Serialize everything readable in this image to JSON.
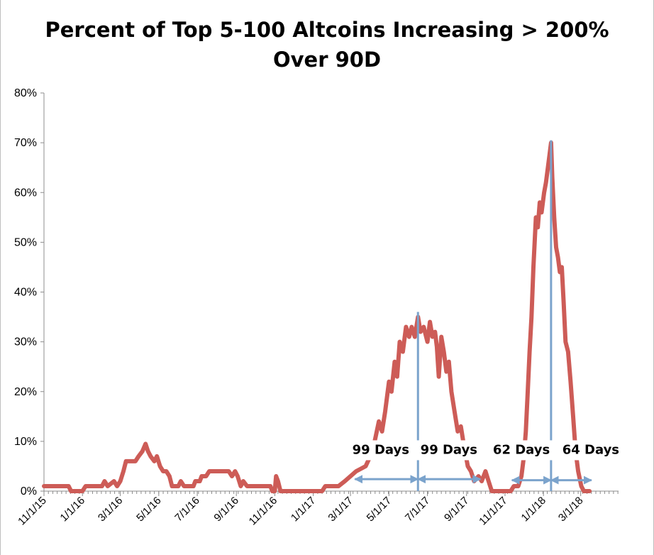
{
  "chart_data": {
    "type": "line",
    "title_lines": [
      "Percent of Top 5-100 Altcoins Increasing > 200%",
      "Over 90D"
    ],
    "xlabel": "",
    "ylabel": "",
    "ylim": [
      0,
      80
    ],
    "yticks": [
      0,
      10,
      20,
      30,
      40,
      50,
      60,
      70,
      80
    ],
    "ytick_labels": [
      "0%",
      "10%",
      "20%",
      "30%",
      "40%",
      "50%",
      "60%",
      "70%",
      "80%"
    ],
    "xlim": [
      "2015-11-01",
      "2018-04-30"
    ],
    "xtick_labels": [
      "11/1/15",
      "1/1/16",
      "3/1/16",
      "5/1/16",
      "7/1/16",
      "9/1/16",
      "11/1/16",
      "1/1/17",
      "3/1/17",
      "5/1/17",
      "7/1/17",
      "9/1/17",
      "11/1/17",
      "1/1/18",
      "3/1/18"
    ],
    "xtick_dates": [
      "2015-11-01",
      "2016-01-01",
      "2016-03-01",
      "2016-05-01",
      "2016-07-01",
      "2016-09-01",
      "2016-11-01",
      "2017-01-01",
      "2017-03-01",
      "2017-05-01",
      "2017-07-01",
      "2017-09-01",
      "2017-11-01",
      "2018-01-01",
      "2018-03-01"
    ],
    "grid": false,
    "legend": "none",
    "series": [
      {
        "color": "#cd5c57",
        "points": [
          [
            "2015-11-01",
            1
          ],
          [
            "2015-12-10",
            1
          ],
          [
            "2015-12-14",
            0
          ],
          [
            "2016-01-01",
            0
          ],
          [
            "2016-01-06",
            1
          ],
          [
            "2016-02-01",
            1
          ],
          [
            "2016-02-05",
            2
          ],
          [
            "2016-02-10",
            1
          ],
          [
            "2016-02-20",
            2
          ],
          [
            "2016-02-25",
            1
          ],
          [
            "2016-03-01",
            2
          ],
          [
            "2016-03-06",
            4
          ],
          [
            "2016-03-10",
            6
          ],
          [
            "2016-03-25",
            6
          ],
          [
            "2016-03-30",
            7
          ],
          [
            "2016-04-05",
            8
          ],
          [
            "2016-04-10",
            9.5
          ],
          [
            "2016-04-14",
            8
          ],
          [
            "2016-04-18",
            7
          ],
          [
            "2016-04-24",
            6
          ],
          [
            "2016-04-28",
            7
          ],
          [
            "2016-05-03",
            5
          ],
          [
            "2016-05-08",
            4
          ],
          [
            "2016-05-13",
            4
          ],
          [
            "2016-05-18",
            3
          ],
          [
            "2016-05-22",
            1
          ],
          [
            "2016-06-01",
            1
          ],
          [
            "2016-06-05",
            2
          ],
          [
            "2016-06-10",
            1
          ],
          [
            "2016-06-25",
            1
          ],
          [
            "2016-06-28",
            2
          ],
          [
            "2016-07-05",
            2
          ],
          [
            "2016-07-08",
            3
          ],
          [
            "2016-07-15",
            3
          ],
          [
            "2016-07-20",
            4
          ],
          [
            "2016-08-20",
            4
          ],
          [
            "2016-08-25",
            3
          ],
          [
            "2016-08-30",
            4
          ],
          [
            "2016-09-03",
            3
          ],
          [
            "2016-09-08",
            1
          ],
          [
            "2016-09-12",
            2
          ],
          [
            "2016-09-18",
            1
          ],
          [
            "2016-10-25",
            1
          ],
          [
            "2016-10-28",
            0
          ],
          [
            "2016-11-01",
            0
          ],
          [
            "2016-11-03",
            3
          ],
          [
            "2016-11-06",
            2
          ],
          [
            "2016-11-10",
            0
          ],
          [
            "2017-01-15",
            0
          ],
          [
            "2017-01-20",
            1
          ],
          [
            "2017-02-10",
            1
          ],
          [
            "2017-02-20",
            2
          ],
          [
            "2017-03-01",
            3
          ],
          [
            "2017-03-10",
            4
          ],
          [
            "2017-03-25",
            5
          ],
          [
            "2017-04-05",
            8
          ],
          [
            "2017-04-10",
            11
          ],
          [
            "2017-04-15",
            14
          ],
          [
            "2017-04-20",
            12
          ],
          [
            "2017-04-25",
            16
          ],
          [
            "2017-05-01",
            22
          ],
          [
            "2017-05-05",
            20
          ],
          [
            "2017-05-10",
            26
          ],
          [
            "2017-05-14",
            23
          ],
          [
            "2017-05-18",
            30
          ],
          [
            "2017-05-23",
            28
          ],
          [
            "2017-05-28",
            33
          ],
          [
            "2017-06-02",
            31
          ],
          [
            "2017-06-06",
            33
          ],
          [
            "2017-06-11",
            31
          ],
          [
            "2017-06-16",
            35
          ],
          [
            "2017-06-20",
            32
          ],
          [
            "2017-06-25",
            33
          ],
          [
            "2017-07-01",
            30
          ],
          [
            "2017-07-05",
            34
          ],
          [
            "2017-07-09",
            31
          ],
          [
            "2017-07-13",
            32
          ],
          [
            "2017-07-16",
            29
          ],
          [
            "2017-07-19",
            23
          ],
          [
            "2017-07-23",
            31
          ],
          [
            "2017-07-27",
            28
          ],
          [
            "2017-07-31",
            24
          ],
          [
            "2017-08-04",
            26
          ],
          [
            "2017-08-08",
            20
          ],
          [
            "2017-08-13",
            16
          ],
          [
            "2017-08-18",
            12
          ],
          [
            "2017-08-23",
            13
          ],
          [
            "2017-08-28",
            9
          ],
          [
            "2017-09-03",
            5
          ],
          [
            "2017-09-08",
            4
          ],
          [
            "2017-09-13",
            2
          ],
          [
            "2017-09-20",
            3
          ],
          [
            "2017-09-25",
            2
          ],
          [
            "2017-10-01",
            4
          ],
          [
            "2017-10-06",
            2
          ],
          [
            "2017-10-11",
            0
          ],
          [
            "2017-11-10",
            0
          ],
          [
            "2017-11-15",
            1
          ],
          [
            "2017-11-22",
            1
          ],
          [
            "2017-11-27",
            3
          ],
          [
            "2017-12-01",
            7
          ],
          [
            "2017-12-04",
            12
          ],
          [
            "2017-12-07",
            20
          ],
          [
            "2017-12-10",
            28
          ],
          [
            "2017-12-13",
            35
          ],
          [
            "2017-12-16",
            45
          ],
          [
            "2017-12-20",
            55
          ],
          [
            "2017-12-23",
            53
          ],
          [
            "2017-12-26",
            58
          ],
          [
            "2017-12-29",
            56
          ],
          [
            "2018-01-02",
            60
          ],
          [
            "2018-01-05",
            62
          ],
          [
            "2018-01-09",
            66
          ],
          [
            "2018-01-13",
            70
          ],
          [
            "2018-01-15",
            63
          ],
          [
            "2018-01-18",
            55
          ],
          [
            "2018-01-21",
            49
          ],
          [
            "2018-01-24",
            47
          ],
          [
            "2018-01-27",
            44
          ],
          [
            "2018-01-30",
            45
          ],
          [
            "2018-02-02",
            38
          ],
          [
            "2018-02-05",
            30
          ],
          [
            "2018-02-09",
            28
          ],
          [
            "2018-02-13",
            22
          ],
          [
            "2018-02-17",
            15
          ],
          [
            "2018-02-21",
            8
          ],
          [
            "2018-02-25",
            4
          ],
          [
            "2018-03-02",
            1
          ],
          [
            "2018-03-06",
            0
          ],
          [
            "2018-03-15",
            0
          ]
        ]
      }
    ],
    "peak_lines": [
      {
        "date": "2017-06-16",
        "value": 36
      },
      {
        "date": "2018-01-13",
        "value": 70.5
      }
    ],
    "annotations": [
      {
        "text": "99 Days",
        "from": "2017-03-08",
        "to": "2017-06-16",
        "arrow_y": 2.4,
        "label_date": "2017-04-18",
        "label_y": 7.5
      },
      {
        "text": "99 Days",
        "from": "2017-06-16",
        "to": "2017-09-23",
        "arrow_y": 2.4,
        "label_date": "2017-08-04",
        "label_y": 7.5
      },
      {
        "text": "62 Days",
        "from": "2017-11-12",
        "to": "2018-01-13",
        "arrow_y": 2.2,
        "label_date": "2017-11-27",
        "label_y": 7.5
      },
      {
        "text": "64 Days",
        "from": "2018-01-13",
        "to": "2018-03-18",
        "arrow_y": 2.2,
        "label_date": "2018-03-17",
        "label_y": 7.5
      }
    ],
    "colors": {
      "line": "#cd5c57",
      "arrow": "#7ba3cc",
      "axis": "#8c8c8c"
    }
  }
}
